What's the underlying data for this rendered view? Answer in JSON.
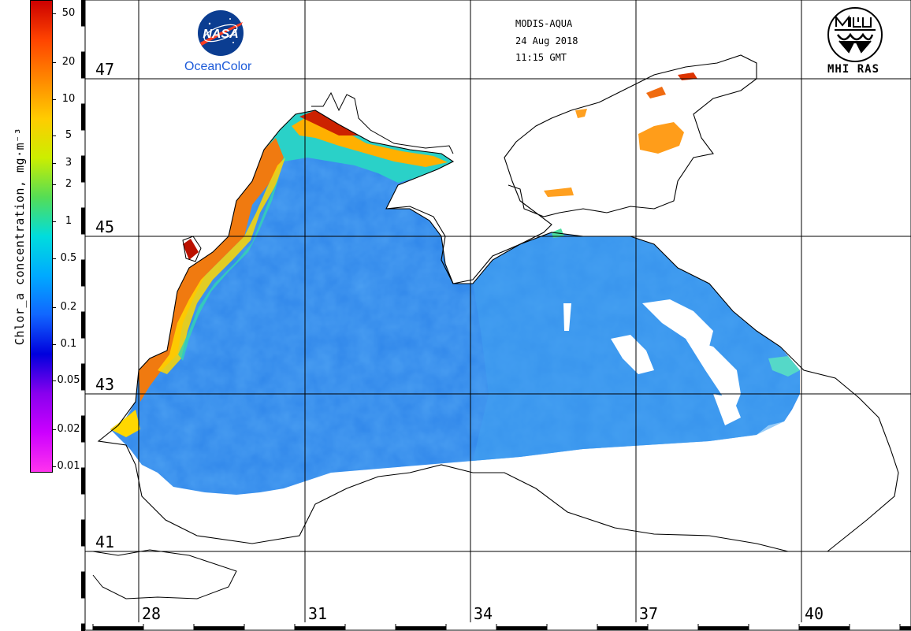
{
  "colorbar": {
    "label": "Chlor_a concentration, mg·m⁻³",
    "ticks": [
      "50",
      "20",
      "10",
      "5",
      "3",
      "2",
      "1",
      "0.5",
      "0.2",
      "0.1",
      "0.05",
      "0.02",
      "0.01"
    ],
    "gradient_colors": [
      "#cc0000",
      "#ff4400",
      "#ff8800",
      "#ffcc00",
      "#ccee00",
      "#55dd55",
      "#00dddd",
      "#00aaff",
      "#1166ff",
      "#0000dd",
      "#8800ee",
      "#cc00ff",
      "#ff33ee"
    ]
  },
  "header": {
    "sensor": "MODIS-AQUA",
    "date": "24 Aug 2018",
    "time": "11:15 GMT"
  },
  "logos": {
    "nasa_wordmark": "NASA",
    "oceancolor": "OceanColor",
    "institute": "MHI RAS"
  },
  "grid": {
    "latitudes": [
      "47",
      "45",
      "43",
      "41"
    ],
    "longitudes": [
      "28",
      "31",
      "34",
      "37",
      "40"
    ]
  },
  "map": {
    "region": "Black Sea",
    "sea_color": "#2f86ea",
    "coastal_bloom_color": "#e85a10"
  }
}
